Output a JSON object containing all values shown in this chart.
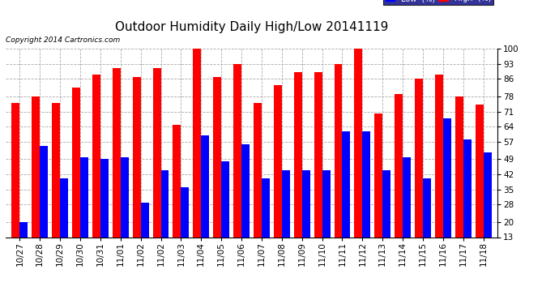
{
  "title": "Outdoor Humidity Daily High/Low 20141119",
  "copyright": "Copyright 2014 Cartronics.com",
  "dates": [
    "10/27",
    "10/28",
    "10/29",
    "10/30",
    "10/31",
    "11/01",
    "11/02",
    "11/02",
    "11/03",
    "11/04",
    "11/05",
    "11/06",
    "11/07",
    "11/08",
    "11/09",
    "11/10",
    "11/11",
    "11/12",
    "11/13",
    "11/14",
    "11/15",
    "11/16",
    "11/17",
    "11/18"
  ],
  "high": [
    75,
    78,
    75,
    82,
    88,
    91,
    87,
    91,
    65,
    100,
    87,
    93,
    75,
    83,
    89,
    89,
    93,
    100,
    70,
    79,
    86,
    88,
    78,
    74
  ],
  "low": [
    20,
    55,
    40,
    50,
    49,
    50,
    29,
    44,
    36,
    60,
    48,
    56,
    40,
    44,
    44,
    44,
    62,
    62,
    44,
    50,
    40,
    68,
    58,
    52
  ],
  "ylim": [
    13,
    100
  ],
  "yticks": [
    13,
    20,
    28,
    35,
    42,
    49,
    57,
    64,
    71,
    78,
    86,
    93,
    100
  ],
  "bar_width": 0.4,
  "high_color": "#ff0000",
  "low_color": "#0000ff",
  "bg_color": "#ffffff",
  "grid_color": "#aaaaaa",
  "title_fontsize": 11,
  "tick_fontsize": 7.5,
  "legend_fontsize": 7,
  "copyright_fontsize": 6.5
}
